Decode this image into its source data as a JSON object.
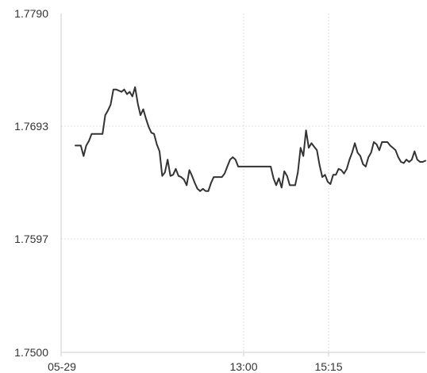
{
  "chart_data": {
    "type": "line",
    "title": "",
    "xlabel": "",
    "ylabel": "",
    "ylim": [
      1.75,
      1.779
    ],
    "y_ticks": [
      "1.7790",
      "1.7693",
      "1.7597",
      "1.7500"
    ],
    "x_ticks": [
      "05-29",
      "13:00",
      "15:15"
    ],
    "grid": {
      "horizontal": true,
      "vertical": true,
      "style": "dotted"
    },
    "colors": {
      "line": "#333333",
      "grid": "#dddddd",
      "axis": "#cccccc"
    },
    "series": [
      {
        "values": [
          1.7677,
          1.7677,
          1.7677,
          1.7668,
          1.7677,
          1.7681,
          1.7687,
          1.7687,
          1.7687,
          1.7687,
          1.7687,
          1.7703,
          1.7707,
          1.7712,
          1.7725,
          1.7725,
          1.7724,
          1.7723,
          1.7725,
          1.7721,
          1.7723,
          1.7719,
          1.7727,
          1.7713,
          1.7703,
          1.7708,
          1.77,
          1.7693,
          1.7688,
          1.7687,
          1.7678,
          1.7672,
          1.7651,
          1.7654,
          1.7665,
          1.7651,
          1.7652,
          1.7657,
          1.7651,
          1.765,
          1.7648,
          1.7643,
          1.7656,
          1.7651,
          1.7645,
          1.764,
          1.7638,
          1.764,
          1.7638,
          1.7638,
          1.7645,
          1.765,
          1.765,
          1.765,
          1.765,
          1.7653,
          1.7659,
          1.7665,
          1.7667,
          1.7665,
          1.7659,
          1.7659,
          1.7659,
          1.7659,
          1.7659,
          1.7659,
          1.7659,
          1.7659,
          1.7659,
          1.7659,
          1.7659,
          1.7659,
          1.7659,
          1.7649,
          1.7643,
          1.7649,
          1.7641,
          1.7655,
          1.7651,
          1.7643,
          1.7643,
          1.7643,
          1.7654,
          1.7675,
          1.7668,
          1.769,
          1.7675,
          1.7679,
          1.7676,
          1.7673,
          1.766,
          1.765,
          1.7652,
          1.7646,
          1.7644,
          1.7652,
          1.7652,
          1.7657,
          1.7656,
          1.7653,
          1.7657,
          1.7665,
          1.7671,
          1.7679,
          1.7671,
          1.7668,
          1.7661,
          1.7659,
          1.7667,
          1.7671,
          1.768,
          1.7678,
          1.7673,
          1.768,
          1.768,
          1.768,
          1.7677,
          1.7675,
          1.7673,
          1.7667,
          1.7663,
          1.7662,
          1.7665,
          1.7663,
          1.7665,
          1.7672,
          1.7665,
          1.7663,
          1.7663,
          1.7664
        ]
      }
    ]
  }
}
